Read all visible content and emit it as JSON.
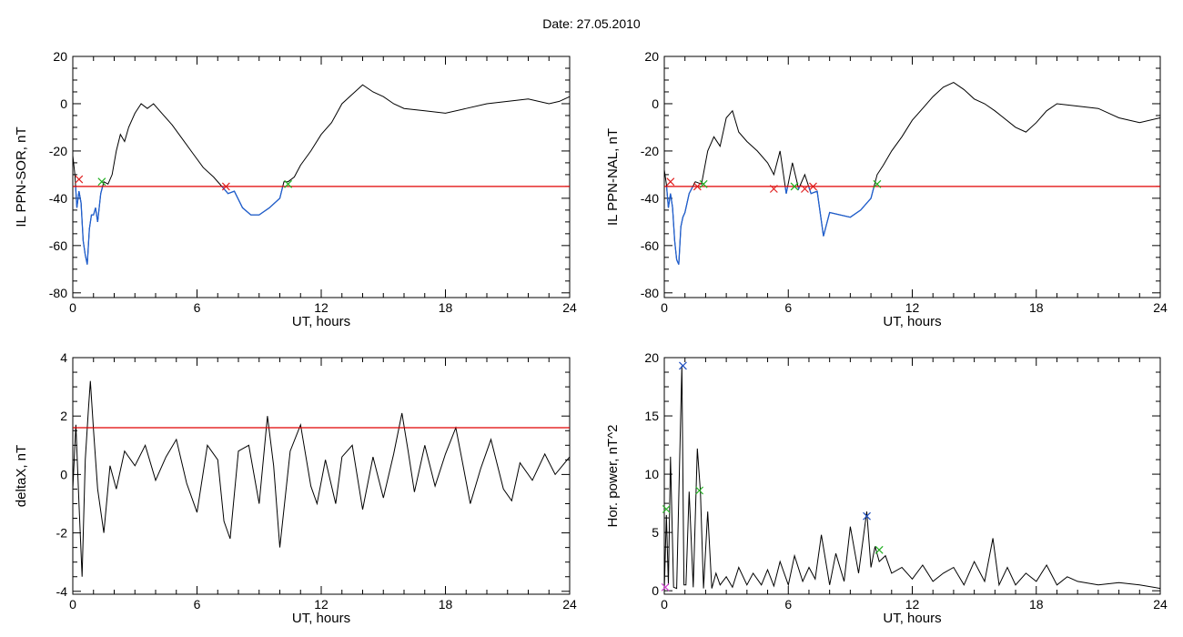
{
  "page": {
    "title": "Date:  27.05.2010"
  },
  "colors": {
    "line": "#000000",
    "threshold": "#e00000",
    "below": "#1f5fd0",
    "marker_start": "#e02020",
    "marker_end": "#20b020",
    "marker_peak": "#2050c0",
    "marker_minor": "#d040d0"
  },
  "chart_data": [
    {
      "id": "p1",
      "type": "line",
      "xlabel": "UT, hours",
      "ylabel": "IL PPN-SOR, nT",
      "xlim": [
        0,
        24
      ],
      "ylim": [
        -82,
        20
      ],
      "xticks": [
        0,
        6,
        12,
        18,
        24
      ],
      "yticks": [
        -80,
        -60,
        -40,
        -20,
        0,
        20
      ],
      "threshold": -35,
      "series": [
        {
          "x": [
            0,
            0.1,
            0.2,
            0.3,
            0.4,
            0.5,
            0.6,
            0.7,
            0.8,
            0.9,
            1.0,
            1.1,
            1.2,
            1.35,
            1.5,
            1.7,
            1.9,
            2.1,
            2.3,
            2.5,
            2.7,
            3.0,
            3.3,
            3.6,
            3.9,
            4.3,
            4.8,
            5.3,
            5.8,
            6.3,
            6.8,
            7.3,
            7.5,
            7.8,
            8.2,
            8.6,
            9.0,
            9.5,
            10.0,
            10.2,
            10.4,
            10.7,
            11.0,
            11.5,
            12.0,
            12.5,
            13.0,
            13.5,
            14.0,
            14.5,
            15.0,
            15.5,
            16.0,
            17.0,
            18.0,
            19.0,
            20.0,
            21.0,
            22.0,
            23.0,
            23.5,
            24
          ],
          "y": [
            -22,
            -30,
            -44,
            -37,
            -42,
            -58,
            -64,
            -68,
            -53,
            -47,
            -47,
            -44,
            -50,
            -38,
            -33,
            -34,
            -30,
            -20,
            -13,
            -16,
            -10,
            -4,
            0,
            -2,
            0,
            -4,
            -9,
            -15,
            -21,
            -27,
            -31,
            -36,
            -38,
            -37,
            -44,
            -47,
            -47,
            -44,
            -40,
            -33,
            -33,
            -31,
            -26,
            -20,
            -13,
            -8,
            0,
            4,
            8,
            5,
            3,
            0,
            -2,
            -3,
            -4,
            -2,
            0,
            1,
            2,
            0,
            1,
            3
          ]
        }
      ],
      "markers": [
        {
          "x": 0.3,
          "y": -32,
          "kind": "start"
        },
        {
          "x": 1.4,
          "y": -33,
          "kind": "end"
        },
        {
          "x": 7.4,
          "y": -35,
          "kind": "start"
        },
        {
          "x": 10.4,
          "y": -34,
          "kind": "end"
        }
      ]
    },
    {
      "id": "p2",
      "type": "line",
      "xlabel": "UT, hours",
      "ylabel": "IL PPN-NAL, nT",
      "xlim": [
        0,
        24
      ],
      "ylim": [
        -82,
        20
      ],
      "xticks": [
        0,
        6,
        12,
        18,
        24
      ],
      "yticks": [
        -80,
        -60,
        -40,
        -20,
        0,
        20
      ],
      "threshold": -35,
      "series": [
        {
          "x": [
            0,
            0.1,
            0.2,
            0.3,
            0.4,
            0.5,
            0.6,
            0.7,
            0.8,
            0.9,
            1.0,
            1.2,
            1.5,
            1.8,
            2.1,
            2.4,
            2.7,
            3.0,
            3.3,
            3.6,
            4.0,
            4.5,
            5.0,
            5.3,
            5.6,
            5.9,
            6.2,
            6.5,
            6.8,
            7.1,
            7.4,
            7.7,
            8.0,
            8.5,
            9.0,
            9.5,
            10.0,
            10.3,
            10.6,
            11.0,
            11.5,
            12.0,
            12.5,
            13.0,
            13.5,
            14.0,
            14.5,
            15.0,
            15.5,
            16.0,
            17.0,
            17.5,
            18.0,
            18.5,
            19.0,
            20.0,
            21.0,
            22.0,
            23.0,
            24
          ],
          "y": [
            -28,
            -34,
            -44,
            -38,
            -44,
            -58,
            -66,
            -68,
            -52,
            -48,
            -46,
            -38,
            -33,
            -34,
            -20,
            -14,
            -18,
            -6,
            -3,
            -12,
            -16,
            -20,
            -25,
            -30,
            -20,
            -38,
            -25,
            -36,
            -30,
            -38,
            -37,
            -56,
            -46,
            -47,
            -48,
            -45,
            -40,
            -30,
            -26,
            -20,
            -14,
            -7,
            -2,
            3,
            7,
            9,
            6,
            2,
            0,
            -3,
            -10,
            -12,
            -8,
            -3,
            0,
            -1,
            -2,
            -6,
            -8,
            -6
          ]
        }
      ],
      "markers": [
        {
          "x": 0.3,
          "y": -33,
          "kind": "start"
        },
        {
          "x": 1.6,
          "y": -35,
          "kind": "start"
        },
        {
          "x": 1.9,
          "y": -34,
          "kind": "end"
        },
        {
          "x": 5.3,
          "y": -36,
          "kind": "start"
        },
        {
          "x": 6.3,
          "y": -35,
          "kind": "end"
        },
        {
          "x": 6.8,
          "y": -36,
          "kind": "start"
        },
        {
          "x": 7.2,
          "y": -35,
          "kind": "start"
        },
        {
          "x": 10.3,
          "y": -34,
          "kind": "end"
        }
      ]
    },
    {
      "id": "p3",
      "type": "line",
      "xlabel": "UT, hours",
      "ylabel": "deltaX, nT",
      "xlim": [
        0,
        24
      ],
      "ylim": [
        -4.1,
        4
      ],
      "xticks": [
        0,
        6,
        12,
        18,
        24
      ],
      "yticks": [
        -4,
        -2,
        0,
        2,
        4
      ],
      "threshold": 1.6,
      "series": [
        {
          "x": [
            0,
            0.15,
            0.3,
            0.45,
            0.6,
            0.75,
            0.85,
            1.0,
            1.2,
            1.5,
            1.8,
            2.1,
            2.5,
            3.0,
            3.5,
            4.0,
            4.5,
            5.0,
            5.5,
            6.0,
            6.5,
            7.0,
            7.3,
            7.6,
            8.0,
            8.5,
            9.0,
            9.4,
            9.7,
            10.0,
            10.5,
            11.0,
            11.5,
            11.8,
            12.2,
            12.7,
            13.0,
            13.5,
            14.0,
            14.5,
            15.0,
            15.5,
            15.9,
            16.2,
            16.5,
            17.0,
            17.5,
            18.0,
            18.5,
            18.8,
            19.2,
            19.7,
            20.2,
            20.8,
            21.2,
            21.6,
            22.2,
            22.8,
            23.3,
            24
          ],
          "y": [
            -0.5,
            1.7,
            -1.0,
            -3.5,
            0.5,
            2.2,
            3.2,
            1.5,
            -0.5,
            -2.0,
            0.3,
            -0.5,
            0.8,
            0.3,
            1.0,
            -0.2,
            0.6,
            1.2,
            -0.3,
            -1.3,
            1.0,
            0.5,
            -1.6,
            -2.2,
            0.8,
            1.0,
            -1.0,
            2.0,
            0.3,
            -2.5,
            0.8,
            1.7,
            -0.4,
            -1.0,
            0.5,
            -1.0,
            0.6,
            1.0,
            -1.2,
            0.6,
            -0.8,
            0.7,
            2.1,
            0.8,
            -0.6,
            1.0,
            -0.4,
            0.7,
            1.6,
            0.5,
            -1.0,
            0.2,
            1.2,
            -0.5,
            -0.9,
            0.4,
            -0.2,
            0.7,
            0.0,
            0.6
          ]
        }
      ],
      "markers": []
    },
    {
      "id": "p4",
      "type": "line",
      "xlabel": "UT, hours",
      "ylabel": "Hor. power, nT^2",
      "xlim": [
        0,
        24
      ],
      "ylim": [
        -0.3,
        20
      ],
      "xticks": [
        0,
        6,
        12,
        18,
        24
      ],
      "yticks": [
        0,
        5,
        10,
        15,
        20
      ],
      "series": [
        {
          "x": [
            0,
            0.1,
            0.2,
            0.3,
            0.45,
            0.6,
            0.7,
            0.85,
            0.95,
            1.05,
            1.2,
            1.4,
            1.6,
            1.75,
            1.9,
            2.1,
            2.3,
            2.5,
            2.7,
            3.0,
            3.3,
            3.6,
            4.0,
            4.3,
            4.7,
            5.0,
            5.3,
            5.6,
            6.0,
            6.3,
            6.7,
            7.0,
            7.3,
            7.6,
            8.0,
            8.3,
            8.7,
            9.0,
            9.4,
            9.8,
            10.0,
            10.2,
            10.4,
            10.7,
            11.0,
            11.5,
            12.0,
            12.5,
            13.0,
            13.5,
            14.0,
            14.5,
            15.0,
            15.5,
            15.9,
            16.2,
            16.6,
            17.0,
            17.5,
            18.0,
            18.5,
            19.0,
            19.5,
            20.0,
            21.0,
            22.0,
            23.0,
            24
          ],
          "y": [
            0,
            6.5,
            0.5,
            11.5,
            0.3,
            0.2,
            8,
            19.3,
            0.5,
            0.5,
            8.5,
            0.3,
            12.2,
            8.5,
            0.2,
            6.8,
            0.2,
            1.5,
            0.5,
            1.2,
            0.3,
            2.0,
            0.5,
            1.5,
            0.5,
            1.8,
            0.4,
            2.5,
            0.5,
            3.0,
            0.8,
            2.0,
            1.0,
            4.8,
            0.5,
            3.2,
            0.8,
            5.5,
            1.5,
            6.8,
            2.0,
            3.8,
            2.5,
            3.0,
            1.5,
            2.0,
            1.0,
            2.2,
            0.8,
            1.5,
            2.0,
            0.5,
            2.5,
            0.8,
            4.5,
            0.5,
            2.0,
            0.5,
            1.5,
            0.8,
            2.2,
            0.5,
            1.2,
            0.8,
            0.5,
            0.7,
            0.5,
            0.2
          ]
        }
      ],
      "markers": [
        {
          "x": 0.9,
          "y": 19.3,
          "kind": "peak"
        },
        {
          "x": 9.8,
          "y": 6.4,
          "kind": "peak"
        },
        {
          "x": 0.1,
          "y": 7.0,
          "kind": "end"
        },
        {
          "x": 1.7,
          "y": 8.6,
          "kind": "end"
        },
        {
          "x": 10.4,
          "y": 3.5,
          "kind": "end"
        },
        {
          "x": 0.05,
          "y": 0.3,
          "kind": "minor"
        }
      ]
    }
  ]
}
